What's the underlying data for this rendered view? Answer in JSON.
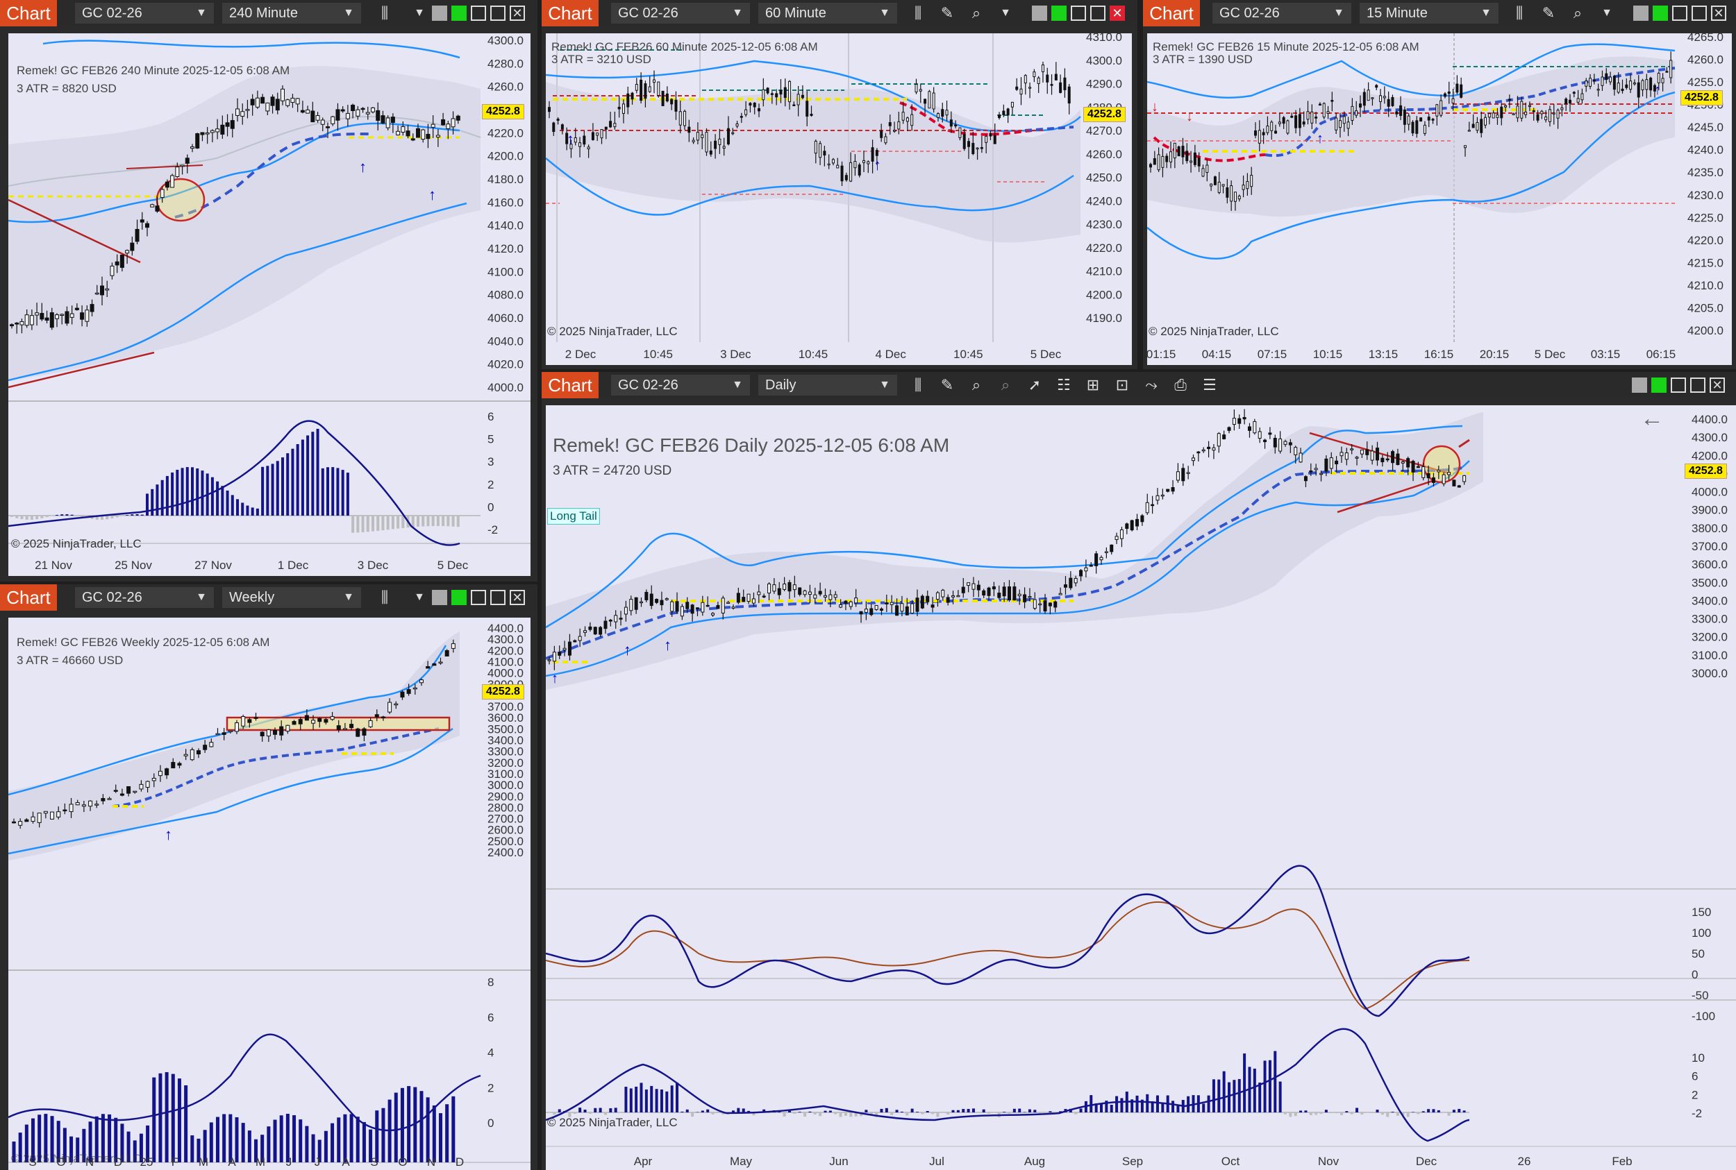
{
  "tab_label": "Chart",
  "copyright": "© 2025 NinjaTrader, LLC",
  "instrument": "GC 02-26",
  "price_marker": "4252.8",
  "windows": {
    "w240": {
      "interval": "240 Minute",
      "header": "Remek!  GC FEB26  240 Minute  2025-12-05 6:08 AM",
      "atr": "3 ATR = 8820 USD",
      "y_ticks": [
        "4300.0",
        "4280.0",
        "4260.0",
        "4240.0",
        "4220.0",
        "4200.0",
        "4180.0",
        "4160.0",
        "4140.0",
        "4120.0",
        "4100.0",
        "4080.0",
        "4060.0",
        "4040.0",
        "4020.0",
        "4000.0"
      ],
      "sub_ticks": [
        "6",
        "5",
        "3",
        "2",
        "0",
        "-2"
      ],
      "x_ticks": [
        "21 Nov",
        "25 Nov",
        "27 Nov",
        "1 Dec",
        "3 Dec",
        "5 Dec"
      ]
    },
    "w60": {
      "interval": "60 Minute",
      "header": "Remek!  GC FEB26  60 Minute  2025-12-05 6:08 AM",
      "atr": "3 ATR = 3210 USD",
      "y_ticks": [
        "4310.0",
        "4300.0",
        "4290.0",
        "4280.0",
        "4270.0",
        "4260.0",
        "4250.0",
        "4240.0",
        "4230.0",
        "4220.0",
        "4210.0",
        "4200.0",
        "4190.0"
      ],
      "x_ticks": [
        "2 Dec",
        "10:45",
        "3 Dec",
        "10:45",
        "4 Dec",
        "10:45",
        "5 Dec"
      ]
    },
    "w15": {
      "interval": "15 Minute",
      "header": "Remek!  GC FEB26  15 Minute  2025-12-05 6:08 AM",
      "atr": "3 ATR = 1390 USD",
      "y_ticks": [
        "4265.0",
        "4260.0",
        "4255.0",
        "4250.0",
        "4245.0",
        "4240.0",
        "4235.0",
        "4230.0",
        "4225.0",
        "4220.0",
        "4215.0",
        "4210.0",
        "4205.0",
        "4200.0"
      ],
      "x_ticks": [
        "01:15",
        "04:15",
        "07:15",
        "10:15",
        "13:15",
        "16:15",
        "20:15",
        "5 Dec",
        "03:15",
        "06:15"
      ]
    },
    "wweek": {
      "interval": "Weekly",
      "header": "Remek!  GC FEB26  Weekly  2025-12-05 6:08 AM",
      "atr": "3 ATR = 46660 USD",
      "y_ticks": [
        "4400.0",
        "4300.0",
        "4200.0",
        "4100.0",
        "4000.0",
        "3900.0",
        "3800.0",
        "3700.0",
        "3600.0",
        "3500.0",
        "3400.0",
        "3300.0",
        "3200.0",
        "3100.0",
        "3000.0",
        "2900.0",
        "2800.0",
        "2700.0",
        "2600.0",
        "2500.0",
        "2400.0"
      ],
      "sub_ticks": [
        "8",
        "6",
        "4",
        "2",
        "0"
      ],
      "x_ticks": [
        "S",
        "O",
        "N",
        "D",
        "25",
        "F",
        "M",
        "A",
        "M",
        "J",
        "J",
        "A",
        "S",
        "O",
        "N",
        "D"
      ]
    },
    "wday": {
      "interval": "Daily",
      "header": "Remek!  GC FEB26  Daily  2025-12-05 6:08 AM",
      "atr": "3 ATR = 24720 USD",
      "long_tail": "Long Tail",
      "back_icon": "←",
      "y_ticks": [
        "4400.0",
        "4300.0",
        "4200.0",
        "4100.0",
        "4000.0",
        "3900.0",
        "3800.0",
        "3700.0",
        "3600.0",
        "3500.0",
        "3400.0",
        "3300.0",
        "3200.0",
        "3100.0",
        "3000.0"
      ],
      "osc_ticks": [
        "150",
        "100",
        "50",
        "0",
        "-50",
        "-100"
      ],
      "sub_ticks": [
        "10",
        "6",
        "2",
        "-2"
      ],
      "x_ticks": [
        "Apr",
        "May",
        "Jun",
        "Jul",
        "Aug",
        "Sep",
        "Oct",
        "Nov",
        "Dec",
        "26",
        "Feb"
      ]
    }
  },
  "colors": {
    "accent": "#d94a1e",
    "plot_bg": "#e6e6f5",
    "band": "#1e90ff",
    "trend": "#3355cc",
    "bar": "#14148a"
  }
}
